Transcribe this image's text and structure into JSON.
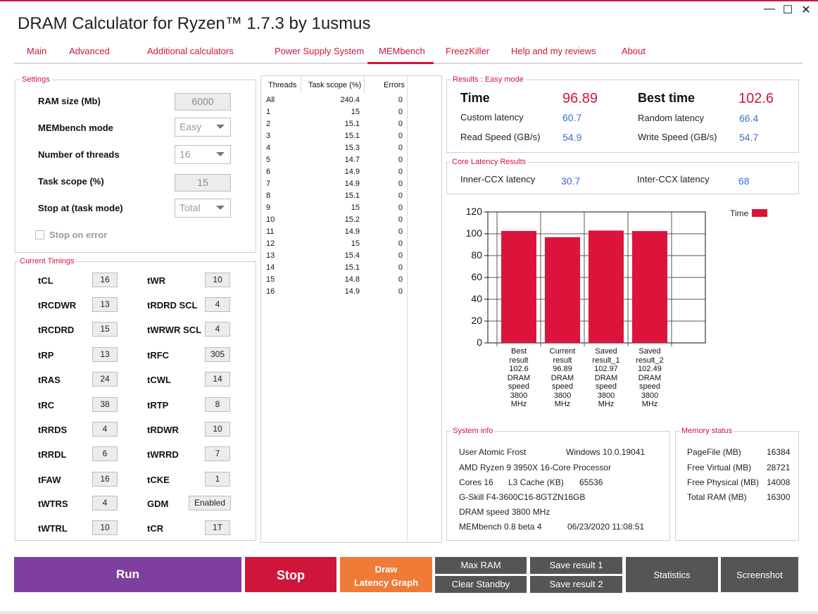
{
  "window": {
    "title": "DRAM Calculator for Ryzen™ 1.7.3 by 1usmus",
    "minimize": "—",
    "maximize": "☐",
    "close": "✕"
  },
  "tabs": [
    "Main",
    "Advanced",
    "Additional calculators",
    "Power Supply System",
    "MEMbench",
    "FreezKiller",
    "Help and my reviews",
    "About"
  ],
  "settings": {
    "title": "Settings",
    "ram_size_label": "RAM size (Mb)",
    "ram_size": "6000",
    "mode_label": "MEMbench mode",
    "mode": "Easy",
    "threads_label": "Number of threads",
    "threads": "16",
    "scope_label": "Task scope (%)",
    "scope": "15",
    "stop_label": "Stop at (task mode)",
    "stop": "Total",
    "stop_on_error": "Stop on error"
  },
  "timings": {
    "title": "Current Timings",
    "left": [
      {
        "name": "tCL",
        "value": "16"
      },
      {
        "name": "tRCDWR",
        "value": "13"
      },
      {
        "name": "tRCDRD",
        "value": "15"
      },
      {
        "name": "tRP",
        "value": "13"
      },
      {
        "name": "tRAS",
        "value": "24"
      },
      {
        "name": "tRC",
        "value": "38"
      },
      {
        "name": "tRRDS",
        "value": "4"
      },
      {
        "name": "tRRDL",
        "value": "6"
      },
      {
        "name": "tFAW",
        "value": "16"
      },
      {
        "name": "tWTRS",
        "value": "4"
      },
      {
        "name": "tWTRL",
        "value": "10"
      }
    ],
    "right": [
      {
        "name": "tWR",
        "value": "10"
      },
      {
        "name": "tRDRD SCL",
        "value": "4"
      },
      {
        "name": "tWRWR SCL",
        "value": "4"
      },
      {
        "name": "tRFC",
        "value": "305"
      },
      {
        "name": "tCWL",
        "value": "14"
      },
      {
        "name": "tRTP",
        "value": "8"
      },
      {
        "name": "tRDWR",
        "value": "10"
      },
      {
        "name": "tWRRD",
        "value": "7"
      },
      {
        "name": "tCKE",
        "value": "1"
      },
      {
        "name": "GDM",
        "value": "Enabled"
      },
      {
        "name": "tCR",
        "value": "1T"
      }
    ]
  },
  "threads_table": {
    "headers": [
      "Threads",
      "Task scope (%)",
      "Errors"
    ],
    "rows": [
      [
        "All",
        "240.4",
        "0"
      ],
      [
        "1",
        "15",
        "0"
      ],
      [
        "2",
        "15.1",
        "0"
      ],
      [
        "3",
        "15.1",
        "0"
      ],
      [
        "4",
        "15.3",
        "0"
      ],
      [
        "5",
        "14.7",
        "0"
      ],
      [
        "6",
        "14.9",
        "0"
      ],
      [
        "7",
        "14.9",
        "0"
      ],
      [
        "8",
        "15.1",
        "0"
      ],
      [
        "9",
        "15",
        "0"
      ],
      [
        "10",
        "15.2",
        "0"
      ],
      [
        "11",
        "14.9",
        "0"
      ],
      [
        "12",
        "15",
        "0"
      ],
      [
        "13",
        "15.4",
        "0"
      ],
      [
        "14",
        "15.1",
        "0"
      ],
      [
        "15",
        "14.8",
        "0"
      ],
      [
        "16",
        "14.9",
        "0"
      ]
    ]
  },
  "results": {
    "title": "Results : Easy mode",
    "time_label": "Time",
    "time": "96.89",
    "best_label": "Best time",
    "best": "102.6",
    "custom_label": "Custom latency",
    "custom": "60.7",
    "random_label": "Random latency",
    "random": "66.4",
    "read_label": "Read Speed (GB/s)",
    "read": "54.9",
    "write_label": "Write Speed (GB/s)",
    "write": "54.7"
  },
  "core_latency": {
    "title": "Core Latency Results",
    "inner_label": "Inner-CCX latency",
    "inner": "30.7",
    "inter_label": "Inter-CCX latency",
    "inter": "68"
  },
  "chart_data": {
    "type": "bar",
    "categories": [
      "Best\nresult\n102.6\nDRAM\nspeed\n3800\nMHz",
      "Current\nresult\n96.89\nDRAM\nspeed\n3800\nMHz",
      "Saved\nresult_1\n102.97\nDRAM\nspeed\n3800\nMHz",
      "Saved\nresult_2\n102.49\nDRAM\nspeed\n3800\nMHz"
    ],
    "series": [
      {
        "name": "Time",
        "values": [
          102.6,
          96.89,
          102.97,
          102.49
        ],
        "color": "#dc143c"
      }
    ],
    "yticks": [
      "0",
      "20",
      "40",
      "60",
      "80",
      "100",
      "120"
    ],
    "ylim": [
      0,
      120
    ],
    "grid": true,
    "legend": "top-right"
  },
  "system_info": {
    "title": "System info",
    "user": "User Atomic Frost",
    "os": "Windows 10.0.19041",
    "cpu": "AMD Ryzen 9 3950X 16-Core Processor",
    "cores": "Cores 16",
    "l3_label": "L3 Cache (KB)",
    "l3": "65536",
    "memory": "G-Skill F4-3600C16-8GTZN16GB",
    "dram": "DRAM speed 3800 MHz",
    "membench": "MEMbench 0.8 beta 4",
    "date": "06/23/2020 11:08:51"
  },
  "memory_status": {
    "title": "Memory status",
    "rows": [
      {
        "label": "PageFile (MB)",
        "value": "16384"
      },
      {
        "label": "Free Virtual (MB)",
        "value": "28721"
      },
      {
        "label": "Free Physical (MB)",
        "value": "14008"
      },
      {
        "label": "Total RAM (MB)",
        "value": "16300"
      }
    ]
  },
  "buttons": {
    "run": "Run",
    "stop": "Stop",
    "draw_line1": "Draw",
    "draw_line2": "Latency Graph",
    "max_ram": "Max RAM",
    "clear_standby": "Clear Standby",
    "save1": "Save result 1",
    "save2": "Save result 2",
    "statistics": "Statistics",
    "screenshot": "Screenshot"
  },
  "colors": {
    "accent": "#d0153b",
    "run": "#7e3f9e",
    "stop": "#d0153b",
    "draw": "#f07b36",
    "dark_button": "#555555",
    "bar": "#dc143c",
    "value_blue": "#3a6fd6"
  }
}
